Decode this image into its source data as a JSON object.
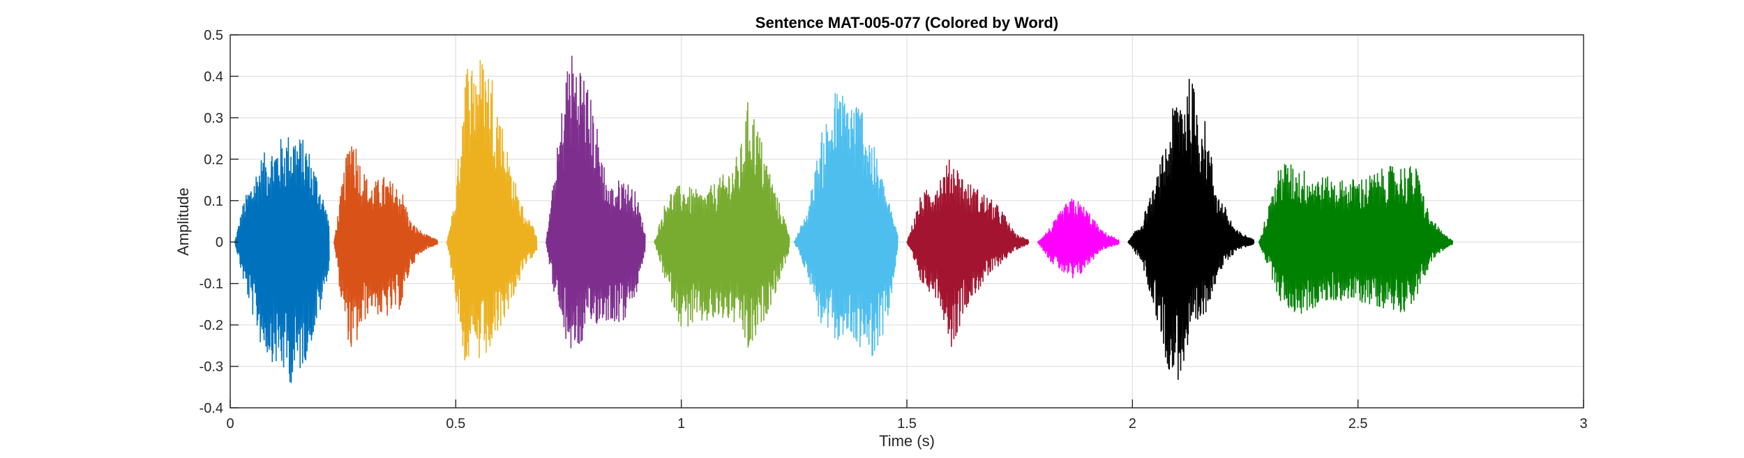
{
  "chart_data": {
    "type": "line",
    "title": "Sentence MAT-005-077 (Colored by Word)",
    "xlabel": "Time (s)",
    "ylabel": "Amplitude",
    "xlim": [
      0,
      3
    ],
    "ylim": [
      -0.4,
      0.5
    ],
    "x_ticks": [
      0,
      0.5,
      1,
      1.5,
      2,
      2.5,
      3
    ],
    "x_tick_labels": [
      "0",
      "0.5",
      "1",
      "1.5",
      "2",
      "2.5",
      "3"
    ],
    "y_ticks": [
      -0.4,
      -0.3,
      -0.2,
      -0.1,
      0,
      0.1,
      0.2,
      0.3,
      0.4,
      0.5
    ],
    "y_tick_labels": [
      "-0.4",
      "-0.3",
      "-0.2",
      "-0.1",
      "0",
      "0.1",
      "0.2",
      "0.3",
      "0.4",
      "0.5"
    ],
    "grid": true,
    "words": [
      {
        "start": 0.01,
        "end": 0.22,
        "color": "#0072BD",
        "envelope": [
          [
            0.01,
            0
          ],
          [
            0.03,
            0.1
          ],
          [
            0.07,
            0.21
          ],
          [
            0.11,
            0.25
          ],
          [
            0.14,
            0.27
          ],
          [
            0.17,
            0.24
          ],
          [
            0.2,
            0.14
          ],
          [
            0.22,
            0.05
          ]
        ],
        "envelope_neg": [
          [
            0.01,
            0
          ],
          [
            0.03,
            -0.1
          ],
          [
            0.07,
            -0.26
          ],
          [
            0.11,
            -0.31
          ],
          [
            0.14,
            -0.35
          ],
          [
            0.17,
            -0.28
          ],
          [
            0.2,
            -0.17
          ],
          [
            0.22,
            -0.06
          ]
        ]
      },
      {
        "start": 0.23,
        "end": 0.46,
        "color": "#D95319",
        "envelope": [
          [
            0.23,
            0
          ],
          [
            0.25,
            0.16
          ],
          [
            0.27,
            0.29
          ],
          [
            0.29,
            0.19
          ],
          [
            0.31,
            0.14
          ],
          [
            0.34,
            0.16
          ],
          [
            0.38,
            0.13
          ],
          [
            0.4,
            0.05
          ],
          [
            0.43,
            0.02
          ],
          [
            0.46,
            0.005
          ]
        ],
        "envelope_neg": [
          [
            0.23,
            0
          ],
          [
            0.25,
            -0.18
          ],
          [
            0.27,
            -0.28
          ],
          [
            0.29,
            -0.22
          ],
          [
            0.31,
            -0.16
          ],
          [
            0.34,
            -0.19
          ],
          [
            0.38,
            -0.16
          ],
          [
            0.4,
            -0.06
          ],
          [
            0.43,
            -0.02
          ],
          [
            0.46,
            -0.005
          ]
        ]
      },
      {
        "start": 0.48,
        "end": 0.68,
        "color": "#EDB120",
        "envelope": [
          [
            0.48,
            0
          ],
          [
            0.5,
            0.12
          ],
          [
            0.52,
            0.44
          ],
          [
            0.55,
            0.46
          ],
          [
            0.58,
            0.42
          ],
          [
            0.61,
            0.25
          ],
          [
            0.64,
            0.11
          ],
          [
            0.66,
            0.06
          ],
          [
            0.68,
            0.02
          ]
        ],
        "envelope_neg": [
          [
            0.48,
            0
          ],
          [
            0.5,
            -0.14
          ],
          [
            0.52,
            -0.29
          ],
          [
            0.55,
            -0.3
          ],
          [
            0.58,
            -0.27
          ],
          [
            0.61,
            -0.18
          ],
          [
            0.64,
            -0.1
          ],
          [
            0.66,
            -0.05
          ],
          [
            0.68,
            -0.02
          ]
        ]
      },
      {
        "start": 0.7,
        "end": 0.92,
        "color": "#7E2F8E",
        "envelope": [
          [
            0.7,
            0
          ],
          [
            0.72,
            0.18
          ],
          [
            0.75,
            0.47
          ],
          [
            0.78,
            0.44
          ],
          [
            0.81,
            0.3
          ],
          [
            0.84,
            0.13
          ],
          [
            0.87,
            0.16
          ],
          [
            0.9,
            0.12
          ],
          [
            0.92,
            0.02
          ]
        ],
        "envelope_neg": [
          [
            0.7,
            0
          ],
          [
            0.72,
            -0.14
          ],
          [
            0.75,
            -0.27
          ],
          [
            0.78,
            -0.25
          ],
          [
            0.81,
            -0.2
          ],
          [
            0.84,
            -0.19
          ],
          [
            0.87,
            -0.2
          ],
          [
            0.9,
            -0.13
          ],
          [
            0.92,
            -0.02
          ]
        ]
      },
      {
        "start": 0.94,
        "end": 1.24,
        "color": "#77AC30",
        "envelope": [
          [
            0.94,
            0
          ],
          [
            0.97,
            0.12
          ],
          [
            1.0,
            0.14
          ],
          [
            1.05,
            0.12
          ],
          [
            1.1,
            0.17
          ],
          [
            1.13,
            0.22
          ],
          [
            1.15,
            0.36
          ],
          [
            1.18,
            0.24
          ],
          [
            1.21,
            0.12
          ],
          [
            1.24,
            0.02
          ]
        ],
        "envelope_neg": [
          [
            0.94,
            0
          ],
          [
            0.97,
            -0.12
          ],
          [
            1.0,
            -0.21
          ],
          [
            1.05,
            -0.2
          ],
          [
            1.1,
            -0.19
          ],
          [
            1.13,
            -0.21
          ],
          [
            1.15,
            -0.28
          ],
          [
            1.18,
            -0.2
          ],
          [
            1.21,
            -0.12
          ],
          [
            1.24,
            -0.02
          ]
        ]
      },
      {
        "start": 1.25,
        "end": 1.48,
        "color": "#4DBEEE",
        "envelope": [
          [
            1.25,
            0
          ],
          [
            1.28,
            0.08
          ],
          [
            1.31,
            0.26
          ],
          [
            1.34,
            0.37
          ],
          [
            1.37,
            0.36
          ],
          [
            1.4,
            0.34
          ],
          [
            1.43,
            0.22
          ],
          [
            1.46,
            0.1
          ],
          [
            1.48,
            0.02
          ]
        ],
        "envelope_neg": [
          [
            1.25,
            0
          ],
          [
            1.28,
            -0.08
          ],
          [
            1.31,
            -0.21
          ],
          [
            1.34,
            -0.24
          ],
          [
            1.37,
            -0.23
          ],
          [
            1.4,
            -0.26
          ],
          [
            1.43,
            -0.28
          ],
          [
            1.46,
            -0.18
          ],
          [
            1.48,
            -0.02
          ]
        ]
      },
      {
        "start": 1.5,
        "end": 1.77,
        "color": "#A2142F",
        "envelope": [
          [
            1.5,
            0
          ],
          [
            1.53,
            0.11
          ],
          [
            1.57,
            0.16
          ],
          [
            1.6,
            0.21
          ],
          [
            1.63,
            0.15
          ],
          [
            1.67,
            0.12
          ],
          [
            1.71,
            0.08
          ],
          [
            1.74,
            0.02
          ],
          [
            1.77,
            0.005
          ]
        ],
        "envelope_neg": [
          [
            1.5,
            0
          ],
          [
            1.53,
            -0.1
          ],
          [
            1.57,
            -0.14
          ],
          [
            1.6,
            -0.26
          ],
          [
            1.63,
            -0.16
          ],
          [
            1.67,
            -0.1
          ],
          [
            1.71,
            -0.05
          ],
          [
            1.74,
            -0.02
          ],
          [
            1.77,
            -0.005
          ]
        ]
      },
      {
        "start": 1.79,
        "end": 1.97,
        "color": "#FF00FF",
        "envelope": [
          [
            1.79,
            0
          ],
          [
            1.82,
            0.04
          ],
          [
            1.85,
            0.09
          ],
          [
            1.87,
            0.11
          ],
          [
            1.9,
            0.08
          ],
          [
            1.93,
            0.03
          ],
          [
            1.97,
            0.005
          ]
        ],
        "envelope_neg": [
          [
            1.79,
            0
          ],
          [
            1.82,
            -0.05
          ],
          [
            1.85,
            -0.08
          ],
          [
            1.87,
            -0.1
          ],
          [
            1.9,
            -0.06
          ],
          [
            1.93,
            -0.02
          ],
          [
            1.97,
            -0.005
          ]
        ]
      },
      {
        "start": 1.99,
        "end": 2.27,
        "color": "#000000",
        "envelope": [
          [
            1.99,
            0
          ],
          [
            2.02,
            0.05
          ],
          [
            2.05,
            0.14
          ],
          [
            2.08,
            0.27
          ],
          [
            2.1,
            0.38
          ],
          [
            2.13,
            0.4
          ],
          [
            2.16,
            0.3
          ],
          [
            2.19,
            0.12
          ],
          [
            2.23,
            0.03
          ],
          [
            2.27,
            0.005
          ]
        ],
        "envelope_neg": [
          [
            1.99,
            0
          ],
          [
            2.02,
            -0.05
          ],
          [
            2.05,
            -0.17
          ],
          [
            2.08,
            -0.31
          ],
          [
            2.1,
            -0.34
          ],
          [
            2.13,
            -0.26
          ],
          [
            2.16,
            -0.18
          ],
          [
            2.19,
            -0.08
          ],
          [
            2.23,
            -0.02
          ],
          [
            2.27,
            -0.005
          ]
        ]
      },
      {
        "start": 2.28,
        "end": 2.71,
        "color": "#008000",
        "envelope": [
          [
            2.28,
            0
          ],
          [
            2.3,
            0.08
          ],
          [
            2.33,
            0.2
          ],
          [
            2.37,
            0.18
          ],
          [
            2.42,
            0.16
          ],
          [
            2.47,
            0.15
          ],
          [
            2.52,
            0.16
          ],
          [
            2.56,
            0.18
          ],
          [
            2.6,
            0.19
          ],
          [
            2.63,
            0.18
          ],
          [
            2.66,
            0.06
          ],
          [
            2.69,
            0.02
          ],
          [
            2.71,
            0.005
          ]
        ],
        "envelope_neg": [
          [
            2.28,
            0
          ],
          [
            2.3,
            -0.06
          ],
          [
            2.33,
            -0.15
          ],
          [
            2.37,
            -0.18
          ],
          [
            2.42,
            -0.15
          ],
          [
            2.47,
            -0.14
          ],
          [
            2.52,
            -0.15
          ],
          [
            2.56,
            -0.16
          ],
          [
            2.6,
            -0.17
          ],
          [
            2.63,
            -0.14
          ],
          [
            2.66,
            -0.05
          ],
          [
            2.69,
            -0.02
          ],
          [
            2.71,
            -0.005
          ]
        ]
      }
    ]
  }
}
